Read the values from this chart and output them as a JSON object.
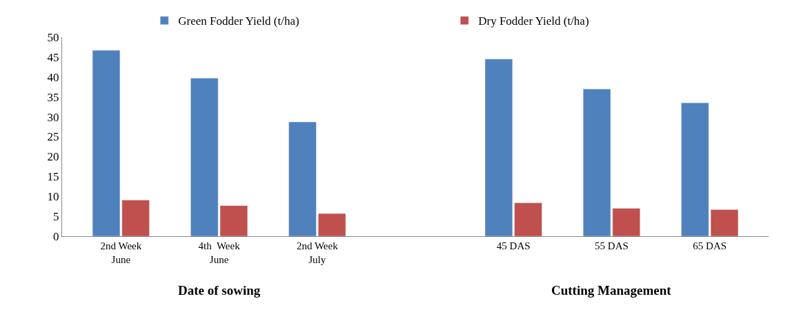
{
  "chart_data": {
    "type": "bar",
    "categories": [
      "2nd Week\nJune",
      "4th  Week\nJune",
      "2nd Week\nJuly",
      null,
      "45 DAS",
      "55 DAS",
      "65 DAS"
    ],
    "series": [
      {
        "name": "Green Fodder Yield (t/ha)",
        "color": "#4f81bd",
        "values": [
          46.7,
          39.7,
          28.7,
          null,
          44.5,
          37.0,
          33.5
        ]
      },
      {
        "name": "Dry Fodder Yield (t/ha)",
        "color": "#c0504d",
        "values": [
          9.1,
          7.7,
          5.7,
          null,
          8.4,
          7.0,
          6.7
        ]
      }
    ],
    "ylim": [
      0,
      50
    ],
    "yticks": [
      0,
      5,
      10,
      15,
      20,
      25,
      30,
      35,
      40,
      45,
      50
    ],
    "legend": "top",
    "annotations": [
      "Date of sowing",
      "Cutting Management"
    ]
  }
}
